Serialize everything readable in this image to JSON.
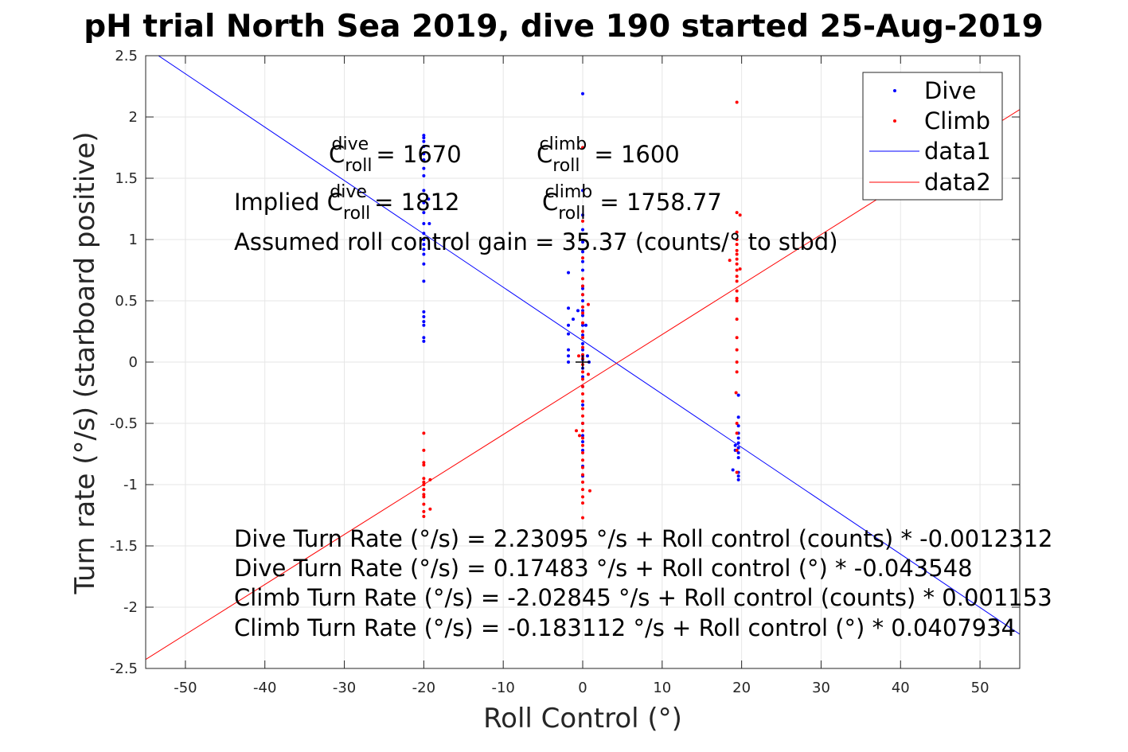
{
  "chart_data": {
    "type": "scatter",
    "title": "pH trial North Sea 2019, dive 190 started 25-Aug-2019",
    "xlabel": "Roll Control (°)",
    "ylabel": "Turn rate (°/s) (starboard positive)",
    "xlim": [
      -55,
      55
    ],
    "ylim": [
      -2.5,
      2.5
    ],
    "grid": true,
    "legend_position": "top-right",
    "x_ticks": [
      -50,
      -40,
      -30,
      -20,
      -10,
      0,
      10,
      20,
      30,
      40,
      50
    ],
    "x_tick_labels": [
      "-50",
      "-40",
      "-30",
      "-20",
      "-10",
      "0",
      "10",
      "20",
      "30",
      "40",
      "50"
    ],
    "y_ticks": [
      -2.5,
      -2,
      -1.5,
      -1,
      -0.5,
      0,
      0.5,
      1,
      1.5,
      2,
      2.5
    ],
    "y_tick_labels": [
      "-2.5",
      "-2",
      "-1.5",
      "-1",
      "-0.5",
      "0",
      "0.5",
      "1",
      "1.5",
      "2",
      "2.5"
    ],
    "series": [
      {
        "name": "Dive",
        "kind": "points",
        "color": "#0000ff",
        "points": [
          [
            -20,
            1.85
          ],
          [
            -20,
            1.83
          ],
          [
            -20,
            1.8
          ],
          [
            -20,
            1.76
          ],
          [
            -20,
            1.7
          ],
          [
            -20,
            1.65
          ],
          [
            -20,
            1.58
          ],
          [
            -20,
            1.52
          ],
          [
            -20,
            1.4
          ],
          [
            -20,
            1.3
          ],
          [
            -20,
            1.22
          ],
          [
            -20,
            1.13
          ],
          [
            -20,
            1.05
          ],
          [
            -20,
            1.0
          ],
          [
            -20,
            0.96
          ],
          [
            -20,
            0.92
          ],
          [
            -20,
            0.88
          ],
          [
            -20,
            0.8
          ],
          [
            -20,
            0.66
          ],
          [
            -20,
            0.41
          ],
          [
            -20,
            0.37
          ],
          [
            -20,
            0.33
          ],
          [
            -20,
            0.3
          ],
          [
            -20,
            0.2
          ],
          [
            -20,
            0.17
          ],
          [
            -19.4,
            1.33
          ],
          [
            -19.3,
            1.13
          ],
          [
            0,
            2.19
          ],
          [
            0,
            1.4
          ],
          [
            0,
            1.2
          ],
          [
            0,
            1.08
          ],
          [
            0,
            0.98
          ],
          [
            0,
            0.9
          ],
          [
            0,
            0.82
          ],
          [
            0,
            0.75
          ],
          [
            0,
            0.62
          ],
          [
            0,
            0.6
          ],
          [
            0,
            0.55
          ],
          [
            0,
            0.5
          ],
          [
            0,
            0.42
          ],
          [
            0,
            0.38
          ],
          [
            0,
            0.3
          ],
          [
            0,
            0.22
          ],
          [
            0,
            0.15
          ],
          [
            0,
            0.1
          ],
          [
            0,
            0.05
          ],
          [
            0,
            0.02
          ],
          [
            0,
            -0.05
          ],
          [
            0,
            -0.12
          ],
          [
            0,
            -0.2
          ],
          [
            0,
            -0.35
          ],
          [
            0,
            -0.5
          ],
          [
            0,
            -0.6
          ],
          [
            0,
            -0.65
          ],
          [
            0,
            -0.72
          ],
          [
            0,
            -0.85
          ],
          [
            0,
            -0.93
          ],
          [
            -1.8,
            0.73
          ],
          [
            -1.8,
            0.44
          ],
          [
            -1.8,
            0.3
          ],
          [
            -1.8,
            0.23
          ],
          [
            -1.8,
            0.1
          ],
          [
            -1.8,
            0.05
          ],
          [
            -1.8,
            0.0
          ],
          [
            -1.2,
            0.35
          ],
          [
            -0.6,
            0.42
          ],
          [
            0.4,
            0.3
          ],
          [
            0.6,
            0.05
          ],
          [
            0.8,
            0.0
          ],
          [
            19.6,
            -0.27
          ],
          [
            19.6,
            -0.45
          ],
          [
            19.6,
            -0.52
          ],
          [
            19.6,
            -0.58
          ],
          [
            19.6,
            -0.62
          ],
          [
            19.6,
            -0.66
          ],
          [
            19.6,
            -0.7
          ],
          [
            19.6,
            -0.74
          ],
          [
            19.6,
            -0.78
          ],
          [
            19.6,
            -0.9
          ],
          [
            19.6,
            -0.93
          ],
          [
            19.6,
            -0.96
          ],
          [
            19.2,
            -0.68
          ],
          [
            19.2,
            -0.72
          ],
          [
            18.9,
            -0.88
          ]
        ]
      },
      {
        "name": "Climb",
        "kind": "points",
        "color": "#ff0000",
        "points": [
          [
            -20,
            -0.58
          ],
          [
            -20,
            -0.72
          ],
          [
            -20,
            -0.82
          ],
          [
            -20,
            -0.84
          ],
          [
            -20,
            -0.95
          ],
          [
            -20,
            -0.98
          ],
          [
            -20,
            -1.0
          ],
          [
            -20,
            -1.04
          ],
          [
            -20,
            -1.08
          ],
          [
            -20,
            -1.1
          ],
          [
            -20,
            -1.16
          ],
          [
            -20,
            -1.22
          ],
          [
            -20,
            -1.26
          ],
          [
            -19.2,
            -0.96
          ],
          [
            -19.2,
            -1.2
          ],
          [
            0,
            1.75
          ],
          [
            0,
            1.15
          ],
          [
            0,
            0.85
          ],
          [
            0,
            0.68
          ],
          [
            0,
            0.62
          ],
          [
            0,
            0.55
          ],
          [
            0,
            0.45
          ],
          [
            0,
            0.4
          ],
          [
            0,
            0.32
          ],
          [
            0,
            0.25
          ],
          [
            0,
            0.2
          ],
          [
            0,
            0.12
          ],
          [
            0,
            0.06
          ],
          [
            0,
            0.03
          ],
          [
            0,
            -0.02
          ],
          [
            0,
            -0.08
          ],
          [
            0,
            -0.14
          ],
          [
            0,
            -0.2
          ],
          [
            0,
            -0.26
          ],
          [
            0,
            -0.32
          ],
          [
            0,
            -0.38
          ],
          [
            0,
            -0.44
          ],
          [
            0,
            -0.5
          ],
          [
            0,
            -0.56
          ],
          [
            0,
            -0.62
          ],
          [
            0,
            -0.68
          ],
          [
            0,
            -0.74
          ],
          [
            0,
            -0.8
          ],
          [
            0,
            -0.86
          ],
          [
            0,
            -0.92
          ],
          [
            0,
            -0.98
          ],
          [
            0,
            -1.04
          ],
          [
            0,
            -1.1
          ],
          [
            0,
            -1.15
          ],
          [
            0,
            -1.27
          ],
          [
            0.7,
            0.47
          ],
          [
            0.7,
            -0.1
          ],
          [
            0.9,
            -1.05
          ],
          [
            -0.4,
            -0.6
          ],
          [
            -0.8,
            -0.56
          ],
          [
            -0.5,
            0.05
          ],
          [
            19.4,
            2.12
          ],
          [
            19.4,
            1.22
          ],
          [
            19.4,
            1.06
          ],
          [
            19.4,
            1.0
          ],
          [
            19.4,
            0.96
          ],
          [
            19.4,
            0.91
          ],
          [
            19.4,
            0.88
          ],
          [
            19.4,
            0.84
          ],
          [
            19.4,
            0.8
          ],
          [
            19.4,
            0.75
          ],
          [
            19.4,
            0.7
          ],
          [
            19.4,
            0.66
          ],
          [
            19.4,
            0.58
          ],
          [
            19.4,
            0.52
          ],
          [
            19.4,
            0.5
          ],
          [
            19.4,
            0.35
          ],
          [
            19.4,
            0.2
          ],
          [
            19.4,
            0.1
          ],
          [
            19.4,
            0.0
          ],
          [
            19.4,
            -0.08
          ],
          [
            19.4,
            -0.5
          ],
          [
            19.4,
            -0.58
          ],
          [
            19.4,
            -0.72
          ],
          [
            19.4,
            -0.9
          ],
          [
            19.8,
            1.2
          ],
          [
            19.8,
            0.76
          ],
          [
            18.5,
            0.83
          ],
          [
            19.3,
            -0.25
          ]
        ]
      },
      {
        "name": "data1",
        "kind": "line",
        "color": "#0000ff",
        "points": [
          [
            -55,
            2.5701
          ],
          [
            55,
            -2.2204
          ]
        ]
      },
      {
        "name": "data2",
        "kind": "line",
        "color": "#ff0000",
        "points": [
          [
            -55,
            -2.4268
          ],
          [
            55,
            2.0606
          ]
        ]
      }
    ],
    "origin_marker": [
      0,
      0
    ],
    "annotations": [
      {
        "id": "cdive",
        "parts": [
          "C",
          "roll",
          "dive",
          " = 1670"
        ]
      },
      {
        "id": "cclimb",
        "parts": [
          "C",
          "roll",
          "climb",
          " = 1600"
        ]
      },
      {
        "id": "implied-dive",
        "parts": [
          "Implied C",
          "roll",
          "dive",
          " = 1812"
        ]
      },
      {
        "id": "implied-climb",
        "parts": [
          "C",
          "roll",
          "climb",
          " = 1758.77"
        ]
      },
      {
        "id": "gain",
        "text": "Assumed roll control gain = 35.37 (counts/° to stbd)"
      },
      {
        "id": "fit1",
        "text": "Dive Turn Rate (°/s) = 2.23095 °/s + Roll control (counts) * -0.0012312"
      },
      {
        "id": "fit2",
        "text": "Dive Turn Rate (°/s) = 0.17483 °/s + Roll control (°) * -0.043548"
      },
      {
        "id": "fit3",
        "text": "Climb Turn Rate (°/s) = -2.02845 °/s + Roll control (counts) * 0.001153"
      },
      {
        "id": "fit4",
        "text": "Climb Turn Rate (°/s) = -0.183112 °/s + Roll control (°) * 0.0407934"
      }
    ]
  }
}
